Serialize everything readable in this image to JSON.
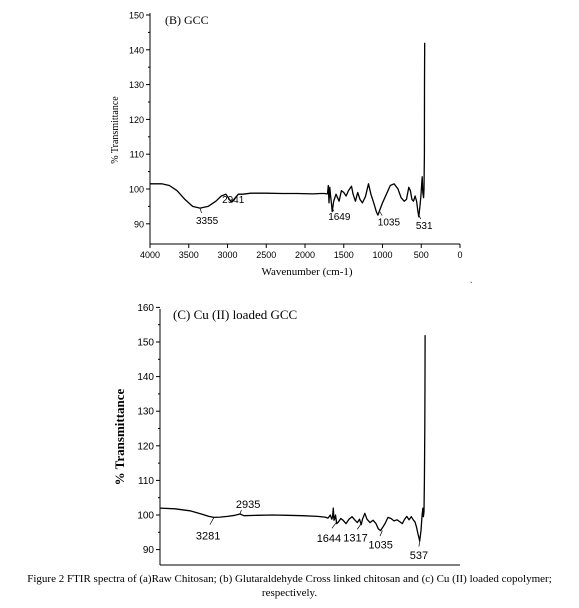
{
  "figure": {
    "caption_line1": "Figure 2 FTIR spectra of (a)Raw Chitosan; (b) Glutaraldehyde Cross linked chitosan  and (c) Cu (II) loaded copolymer;",
    "caption_line2": "respectively.",
    "stray_mark": "`"
  },
  "chart_data": [
    {
      "type": "line",
      "title": "(B) GCC",
      "xlabel": "Wavenumber (cm-1)",
      "ylabel": "% Transmittance",
      "xlim": [
        4000,
        0
      ],
      "ylim": [
        85,
        150
      ],
      "x_ticks": [
        4000,
        3500,
        3000,
        2500,
        2000,
        1500,
        1000,
        500,
        0
      ],
      "y_ticks": [
        90,
        100,
        110,
        120,
        130,
        140,
        150
      ],
      "annotations": [
        {
          "label": "3355",
          "x": 3355,
          "y": 94.5
        },
        {
          "label": "2941",
          "x": 2941,
          "y": 96.5
        },
        {
          "label": "1649",
          "x": 1649,
          "y": 94.5
        },
        {
          "label": "1035",
          "x": 1035,
          "y": 93.5
        },
        {
          "label": "531",
          "x": 531,
          "y": 92.5
        }
      ],
      "series": [
        {
          "color": "#000000",
          "x": [
            4000,
            3850,
            3750,
            3650,
            3550,
            3450,
            3355,
            3250,
            3150,
            3080,
            3020,
            2960,
            2941,
            2900,
            2860,
            2800,
            2700,
            2500,
            2300,
            2100,
            1900,
            1800,
            1750,
            1710,
            1700,
            1690,
            1680,
            1670,
            1660,
            1649,
            1630,
            1600,
            1560,
            1530,
            1500,
            1470,
            1440,
            1400,
            1380,
            1350,
            1320,
            1290,
            1260,
            1220,
            1180,
            1150,
            1120,
            1100,
            1080,
            1060,
            1035,
            1000,
            950,
            900,
            850,
            800,
            760,
            720,
            690,
            660,
            640,
            620,
            600,
            580,
            560,
            545,
            531,
            515,
            505,
            495,
            488,
            480,
            470,
            465,
            460,
            458,
            456
          ],
          "y": [
            101.5,
            101.5,
            101,
            99.5,
            97,
            95,
            94.5,
            95,
            96.5,
            98,
            98.5,
            96.5,
            96.3,
            97.5,
            98.5,
            98.5,
            98.8,
            98.8,
            98.7,
            98.7,
            98.6,
            98.7,
            98.7,
            98.6,
            101,
            96,
            100.5,
            98,
            96,
            93.5,
            96.5,
            98.5,
            96.5,
            99.5,
            99,
            98,
            99.5,
            100.8,
            98.5,
            96.5,
            99,
            97,
            96,
            97.8,
            101.5,
            98.5,
            96.5,
            95,
            93.5,
            92.5,
            94,
            96,
            98.5,
            101,
            101.5,
            100,
            97.5,
            96.5,
            97,
            100.5,
            99.5,
            97,
            96.5,
            98,
            96.5,
            93.8,
            92,
            95.5,
            98,
            101,
            103.5,
            99,
            97.5,
            100,
            110,
            130,
            142
          ]
        }
      ]
    },
    {
      "type": "line",
      "title": "(C) Cu (II) loaded GCC",
      "xlabel": "",
      "ylabel": "% Transmittance",
      "ylim": [
        85,
        160
      ],
      "y_ticks": [
        90,
        100,
        110,
        120,
        130,
        140,
        150,
        160
      ],
      "annotations": [
        {
          "label": "3281",
          "x": 3281,
          "y": 99.3
        },
        {
          "label": "2935",
          "x": 2935,
          "y": 100.3
        },
        {
          "label": "1644",
          "x": 1644,
          "y": 98
        },
        {
          "label": "1317",
          "x": 1317,
          "y": 97.5
        },
        {
          "label": "1035",
          "x": 1035,
          "y": 95.5
        },
        {
          "label": "537",
          "x": 537,
          "y": 92.5
        }
      ],
      "series": [
        {
          "color": "#000000",
          "x": [
            4000,
            3800,
            3600,
            3450,
            3350,
            3281,
            3200,
            3100,
            3000,
            2935,
            2880,
            2700,
            2500,
            2300,
            2100,
            1900,
            1800,
            1760,
            1730,
            1710,
            1700,
            1690,
            1680,
            1670,
            1660,
            1644,
            1620,
            1590,
            1560,
            1520,
            1480,
            1440,
            1400,
            1370,
            1340,
            1317,
            1300,
            1270,
            1240,
            1200,
            1160,
            1120,
            1090,
            1060,
            1035,
            1000,
            960,
            920,
            880,
            840,
            800,
            770,
            740,
            710,
            680,
            650,
            620,
            600,
            580,
            560,
            537,
            520,
            505,
            495,
            488,
            480,
            474,
            470,
            467,
            465
          ],
          "y": [
            102,
            101.8,
            101.2,
            100.3,
            99.6,
            99.3,
            99.4,
            99.6,
            99.9,
            100.3,
            99.8,
            99.9,
            100,
            99.9,
            99.8,
            99.6,
            99.4,
            99.1,
            100,
            98.8,
            99.3,
            102,
            98.5,
            99,
            100,
            97.5,
            98,
            99,
            98.5,
            97.5,
            98.8,
            99.5,
            98.5,
            97.8,
            98.8,
            97.2,
            98.8,
            100.5,
            98.8,
            97.8,
            98.5,
            97.5,
            96,
            95.5,
            96.3,
            97.5,
            99.3,
            99,
            98.3,
            98.6,
            98,
            97.5,
            98.7,
            99.6,
            98.6,
            99.5,
            98.5,
            98,
            96.5,
            94.5,
            92.5,
            95.5,
            100,
            102,
            99.5,
            101,
            110,
            125,
            140,
            152
          ]
        }
      ]
    }
  ]
}
